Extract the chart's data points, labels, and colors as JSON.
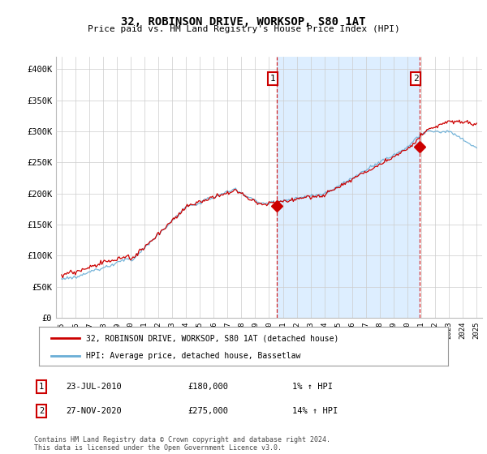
{
  "title": "32, ROBINSON DRIVE, WORKSOP, S80 1AT",
  "subtitle": "Price paid vs. HM Land Registry's House Price Index (HPI)",
  "ylim": [
    0,
    420000
  ],
  "yticks": [
    0,
    50000,
    100000,
    150000,
    200000,
    250000,
    300000,
    350000,
    400000
  ],
  "ytick_labels": [
    "£0",
    "£50K",
    "£100K",
    "£150K",
    "£200K",
    "£250K",
    "£300K",
    "£350K",
    "£400K"
  ],
  "hpi_color": "#6aaed6",
  "price_color": "#cc0000",
  "fill_color": "#ddeeff",
  "marker1_date": 2010.55,
  "marker1_value": 180000,
  "marker2_date": 2020.9,
  "marker2_value": 275000,
  "legend_line1": "32, ROBINSON DRIVE, WORKSOP, S80 1AT (detached house)",
  "legend_line2": "HPI: Average price, detached house, Bassetlaw",
  "annotation1_num": "1",
  "annotation1_date": "23-JUL-2010",
  "annotation1_price": "£180,000",
  "annotation1_hpi": "1% ↑ HPI",
  "annotation2_num": "2",
  "annotation2_date": "27-NOV-2020",
  "annotation2_price": "£275,000",
  "annotation2_hpi": "14% ↑ HPI",
  "footer": "Contains HM Land Registry data © Crown copyright and database right 2024.\nThis data is licensed under the Open Government Licence v3.0.",
  "bg_color": "#ffffff",
  "grid_color": "#cccccc",
  "vline_color": "#cc0000"
}
